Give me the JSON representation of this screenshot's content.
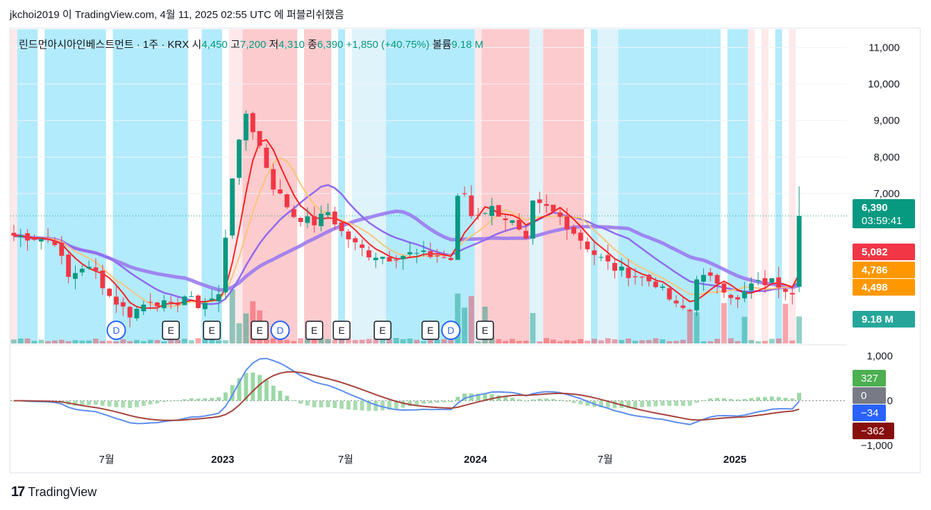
{
  "header": {
    "publish_line": "jkchoi2019 이 TradingView.com, 4월 11, 2025 02:55 UTC 에 퍼블리쉬했음"
  },
  "legend": {
    "symbol": "린드먼아시아인베스트먼트 · 1주 · KRX",
    "open_label": "시",
    "open": "4,450",
    "high_label": "고",
    "high": "7,200",
    "low_label": "저",
    "low": "4,310",
    "close_label": "종",
    "close": "6,390",
    "change": "+1,850 (+40.75%)",
    "volume_label": "볼륨",
    "volume": "9.18 M"
  },
  "brand": {
    "mark": "17",
    "name": "TradingView"
  },
  "colors": {
    "up": "#089981",
    "down": "#f23645",
    "bg_blue": "#b2ebfb",
    "bg_light_blue": "#dff3fb",
    "bg_red": "#fccbcd",
    "bg_pink": "#fde8ea",
    "ma_red": "#ff0000",
    "ma_orange": "#f7c67c",
    "ma_purple": "#9b7bf0",
    "ma_purple2": "#8f6af0",
    "macd_line": "#5b8def",
    "signal_line": "#a5423b",
    "hist_up": "#9ad8a4",
    "hist_down": "#a9dcaf"
  },
  "chart_data": {
    "type": "candlestick",
    "interval": "1 week",
    "price_axis": {
      "ticks": [
        7000,
        8000,
        9000,
        10000,
        11000
      ],
      "tick_labels": [
        "7,000",
        "8,000",
        "9,000",
        "10,000",
        "11,000"
      ],
      "ylim": [
        2900,
        11500
      ]
    },
    "time_axis": {
      "labels": [
        "7월",
        "2023",
        "7월",
        "2024",
        "7월",
        "2025"
      ]
    },
    "price_labels": [
      {
        "text": "6,390",
        "sub": "03:59:41",
        "value": 6390,
        "color": "#089981"
      },
      {
        "text": "5,082",
        "value": 5082,
        "color": "#f23645"
      },
      {
        "text": "4,786",
        "value": 4786,
        "color": "#ff9800"
      },
      {
        "text": "4,498",
        "value": 4498,
        "color": "#ff9800"
      },
      {
        "text": "9.18 M",
        "value": 9.18,
        "color": "#26a69a"
      }
    ],
    "macd_axis": {
      "ticks": [
        1000,
        0,
        -1000
      ],
      "tick_labels": [
        "1,000",
        "0",
        "−1,000"
      ],
      "ylim": [
        -1200,
        1200
      ]
    },
    "macd_labels": [
      {
        "text": "327",
        "value": 327,
        "color": "#4caf50"
      },
      {
        "text": "0",
        "value": 0,
        "color": "#787b86"
      },
      {
        "text": "−34",
        "value": -34,
        "color": "#2962ff"
      },
      {
        "text": "−362",
        "value": -362,
        "color": "#880e0e"
      }
    ],
    "events": [
      {
        "type": "D",
        "week": 15
      },
      {
        "type": "E",
        "week": 23
      },
      {
        "type": "E",
        "week": 29
      },
      {
        "type": "E",
        "week": 36
      },
      {
        "type": "D",
        "week": 39
      },
      {
        "type": "E",
        "week": 44
      },
      {
        "type": "E",
        "week": 48
      },
      {
        "type": "E",
        "week": 54
      },
      {
        "type": "E",
        "week": 61
      },
      {
        "type": "D",
        "week": 64
      },
      {
        "type": "E",
        "week": 69
      }
    ],
    "anchors": [
      [
        0,
        5850
      ],
      [
        3,
        5800
      ],
      [
        6,
        5700
      ],
      [
        8,
        4700
      ],
      [
        10,
        5000
      ],
      [
        12,
        4850
      ],
      [
        14,
        4200
      ],
      [
        17,
        3700
      ],
      [
        20,
        4100
      ],
      [
        23,
        3900
      ],
      [
        25,
        4200
      ],
      [
        27,
        3950
      ],
      [
        30,
        4200
      ],
      [
        32,
        7500
      ],
      [
        34,
        9200
      ],
      [
        36,
        8300
      ],
      [
        38,
        7200
      ],
      [
        41,
        6400
      ],
      [
        44,
        6200
      ],
      [
        46,
        6500
      ],
      [
        48,
        5950
      ],
      [
        50,
        5600
      ],
      [
        52,
        5350
      ],
      [
        55,
        5250
      ],
      [
        58,
        5350
      ],
      [
        62,
        5300
      ],
      [
        64,
        5200
      ],
      [
        65,
        6850
      ],
      [
        66,
        7000
      ],
      [
        67,
        6400
      ],
      [
        70,
        6600
      ],
      [
        73,
        6200
      ],
      [
        75,
        5650
      ],
      [
        76,
        6700
      ],
      [
        78,
        6600
      ],
      [
        80,
        6350
      ],
      [
        82,
        5950
      ],
      [
        85,
        5350
      ],
      [
        88,
        4950
      ],
      [
        91,
        4750
      ],
      [
        94,
        4550
      ],
      [
        97,
        3900
      ],
      [
        99,
        3800
      ],
      [
        100,
        4750
      ],
      [
        103,
        4600
      ],
      [
        106,
        4050
      ],
      [
        108,
        4500
      ],
      [
        111,
        4600
      ],
      [
        114,
        4350
      ],
      [
        115,
        6390
      ]
    ],
    "last_candle": {
      "open": 4450,
      "high": 7200,
      "low": 4310,
      "close": 6390
    },
    "background_regions": [
      {
        "from": 0,
        "to": 1,
        "color": "pink"
      },
      {
        "from": 1,
        "to": 4,
        "color": "blue"
      },
      {
        "from": 5,
        "to": 14,
        "color": "blue"
      },
      {
        "from": 15,
        "to": 26,
        "color": "blue"
      },
      {
        "from": 28,
        "to": 31,
        "color": "blue"
      },
      {
        "from": 32,
        "to": 34,
        "color": "pink"
      },
      {
        "from": 34,
        "to": 42,
        "color": "red"
      },
      {
        "from": 43,
        "to": 47,
        "color": "red"
      },
      {
        "from": 48,
        "to": 49,
        "color": "blue"
      },
      {
        "from": 50,
        "to": 55,
        "color": "lightblue"
      },
      {
        "from": 55,
        "to": 68,
        "color": "blue"
      },
      {
        "from": 68,
        "to": 69,
        "color": "pink"
      },
      {
        "from": 69,
        "to": 76,
        "color": "red"
      },
      {
        "from": 76,
        "to": 78,
        "color": "lightblue"
      },
      {
        "from": 78,
        "to": 84,
        "color": "red"
      },
      {
        "from": 85,
        "to": 86,
        "color": "blue"
      },
      {
        "from": 86,
        "to": 89,
        "color": "lightblue"
      },
      {
        "from": 89,
        "to": 102,
        "color": "blue"
      },
      {
        "from": 102,
        "to": 104,
        "color": "blue"
      },
      {
        "from": 105,
        "to": 108,
        "color": "blue"
      },
      {
        "from": 108,
        "to": 109,
        "color": "pink"
      },
      {
        "from": 110,
        "to": 111,
        "color": "pink"
      },
      {
        "from": 112,
        "to": 113,
        "color": "blue"
      },
      {
        "from": 114,
        "to": 115,
        "color": "pink"
      }
    ]
  }
}
